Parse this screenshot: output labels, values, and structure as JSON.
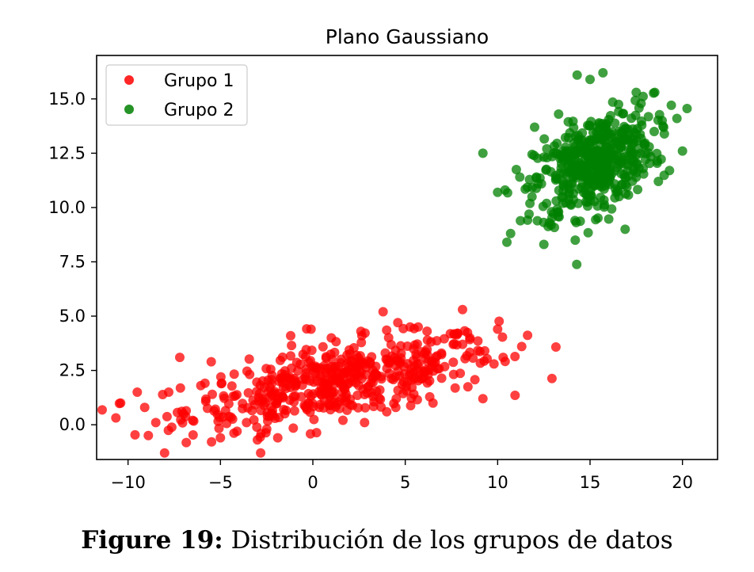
{
  "chart_data": {
    "type": "scatter",
    "title": "Plano Gaussiano",
    "xlabel": "",
    "ylabel": "",
    "xlim": [
      -11.7,
      21.9
    ],
    "ylim": [
      -1.6,
      17.0
    ],
    "xticks": [
      -10,
      -5,
      0,
      5,
      10,
      15,
      20
    ],
    "xtick_labels": [
      "−10",
      "−5",
      "0",
      "5",
      "10",
      "15",
      "20"
    ],
    "yticks": [
      0.0,
      2.5,
      5.0,
      7.5,
      10.0,
      12.5,
      15.0
    ],
    "ytick_labels": [
      "0.0",
      "2.5",
      "5.0",
      "7.5",
      "10.0",
      "12.5",
      "15.0"
    ],
    "grid": false,
    "legend_position": "top-left",
    "series": [
      {
        "name": "Grupo 1",
        "color": "#ff0000",
        "distribution": {
          "n": 500,
          "mean": [
            1.5,
            2.0
          ],
          "std": [
            4.2,
            1.05
          ],
          "correlation": 0.62
        },
        "points": [
          [
            -10.4,
            1.0
          ],
          [
            -9.5,
            1.5
          ],
          [
            -9.1,
            0.8
          ],
          [
            -8.9,
            -0.5
          ],
          [
            -8.5,
            0.1
          ],
          [
            -7.8,
            1.5
          ],
          [
            -7.2,
            3.1
          ],
          [
            -7.0,
            0.5
          ],
          [
            -6.5,
            0.2
          ],
          [
            -5.5,
            2.9
          ],
          [
            -5.0,
            -0.6
          ],
          [
            -4.1,
            -0.3
          ],
          [
            -3.0,
            -0.7
          ],
          [
            -1.9,
            -0.6
          ],
          [
            -1.2,
            4.1
          ],
          [
            -0.1,
            4.4
          ],
          [
            1.0,
            4.0
          ],
          [
            2.6,
            4.3
          ],
          [
            3.8,
            5.2
          ],
          [
            4.6,
            4.7
          ],
          [
            5.7,
            4.5
          ],
          [
            6.2,
            3.9
          ],
          [
            7.6,
            3.7
          ],
          [
            8.1,
            5.3
          ],
          [
            8.5,
            4.0
          ],
          [
            9.3,
            3.4
          ],
          [
            9.8,
            2.8
          ],
          [
            10.0,
            4.4
          ],
          [
            10.3,
            3.1
          ],
          [
            11.3,
            3.6
          ],
          [
            9.2,
            1.2
          ],
          [
            6.5,
            1.0
          ],
          [
            4.0,
            0.6
          ],
          [
            2.8,
            0.1
          ],
          [
            -2.5,
            -0.2
          ]
        ]
      },
      {
        "name": "Grupo 2",
        "color": "#008000",
        "distribution": {
          "n": 500,
          "mean": [
            15.2,
            12.0
          ],
          "std": [
            1.6,
            1.2
          ],
          "correlation": 0.45
        },
        "points": [
          [
            9.2,
            12.5
          ],
          [
            10.0,
            10.7
          ],
          [
            10.5,
            8.4
          ],
          [
            10.7,
            8.8
          ],
          [
            11.2,
            11.4
          ],
          [
            11.7,
            9.7
          ],
          [
            12.5,
            8.3
          ],
          [
            12.8,
            9.3
          ],
          [
            13.3,
            9.8
          ],
          [
            14.2,
            8.5
          ],
          [
            14.3,
            16.1
          ],
          [
            15.7,
            16.2
          ],
          [
            17.5,
            15.3
          ],
          [
            18.5,
            15.3
          ],
          [
            18.9,
            14.0
          ],
          [
            19.7,
            14.1
          ],
          [
            20.0,
            12.6
          ],
          [
            19.3,
            11.7
          ],
          [
            18.7,
            11.2
          ],
          [
            16.9,
            9.0
          ],
          [
            15.0,
            15.9
          ],
          [
            13.3,
            14.3
          ],
          [
            12.0,
            13.7
          ],
          [
            16.9,
            13.6
          ],
          [
            18.2,
            12.8
          ]
        ]
      }
    ]
  },
  "caption": {
    "label": "Figure 19:",
    "text": "Distribución de los grupos de datos"
  }
}
